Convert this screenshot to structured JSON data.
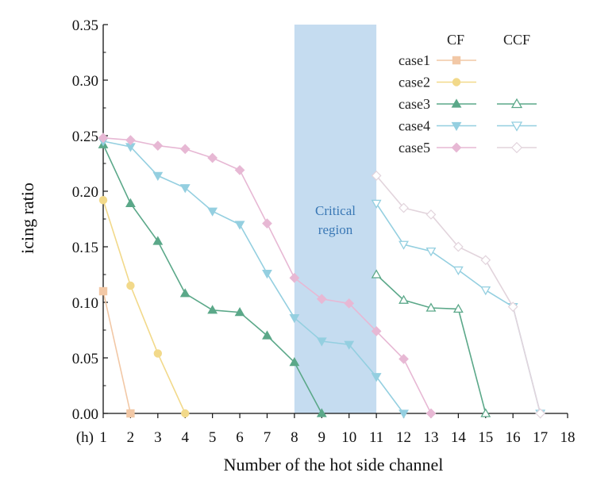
{
  "chart_data": {
    "type": "line",
    "xlabel": "Number of the hot side channel",
    "ylabel": "icing ratio",
    "x_prefix": "(h)",
    "xlim": [
      1,
      18
    ],
    "ylim": [
      0,
      0.35
    ],
    "x_ticks": [
      "1",
      "2",
      "3",
      "4",
      "5",
      "6",
      "7",
      "8",
      "9",
      "10",
      "11",
      "12",
      "13",
      "14",
      "15",
      "16",
      "17",
      "18"
    ],
    "y_ticks": [
      "0.00",
      "0.05",
      "0.10",
      "0.15",
      "0.20",
      "0.25",
      "0.30",
      "0.35"
    ],
    "grid": false,
    "critical_region": {
      "x_start": 8,
      "x_end": 11,
      "label_line1": "Critical",
      "label_line2": "region",
      "color": "#c5dcf0"
    },
    "legend": {
      "position": "top-right",
      "header_left": "CF",
      "header_right": "CCF"
    },
    "series": [
      {
        "name": "case1",
        "group": "CF",
        "color": "#f2c8a6",
        "marker": "square",
        "x": [
          1,
          2
        ],
        "y": [
          0.11,
          0.0
        ]
      },
      {
        "name": "case2",
        "group": "CF",
        "color": "#f2d98a",
        "marker": "circle",
        "x": [
          1,
          2,
          3,
          4
        ],
        "y": [
          0.192,
          0.115,
          0.054,
          0.0
        ]
      },
      {
        "name": "case3",
        "group": "CF",
        "color": "#5ba889",
        "marker": "triangle-up",
        "x": [
          1,
          2,
          3,
          4,
          5,
          6,
          7,
          8,
          9
        ],
        "y": [
          0.242,
          0.189,
          0.155,
          0.108,
          0.093,
          0.091,
          0.07,
          0.046,
          0.0
        ]
      },
      {
        "name": "case4",
        "group": "CF",
        "color": "#94cfe0",
        "marker": "triangle-down",
        "x": [
          1,
          2,
          3,
          4,
          5,
          6,
          7,
          8,
          9,
          10,
          11,
          12
        ],
        "y": [
          0.245,
          0.24,
          0.214,
          0.203,
          0.182,
          0.17,
          0.126,
          0.086,
          0.065,
          0.062,
          0.033,
          0.0
        ]
      },
      {
        "name": "case5",
        "group": "CF",
        "color": "#e7b8d4",
        "marker": "diamond",
        "x": [
          1,
          2,
          3,
          4,
          5,
          6,
          7,
          8,
          9,
          10,
          11,
          12,
          13
        ],
        "y": [
          0.248,
          0.246,
          0.241,
          0.238,
          0.23,
          0.219,
          0.171,
          0.122,
          0.103,
          0.099,
          0.074,
          0.049,
          0.0
        ]
      },
      {
        "name": "case3",
        "group": "CCF",
        "color": "#5ba889",
        "marker": "triangle-up-open",
        "x": [
          11,
          12,
          13,
          14,
          15
        ],
        "y": [
          0.125,
          0.102,
          0.095,
          0.094,
          0.0
        ]
      },
      {
        "name": "case4",
        "group": "CCF",
        "color": "#94cfe0",
        "marker": "triangle-down-open",
        "x": [
          11,
          12,
          13,
          14,
          15,
          16,
          17
        ],
        "y": [
          0.189,
          0.152,
          0.146,
          0.129,
          0.111,
          0.096,
          0.0
        ]
      },
      {
        "name": "case5",
        "group": "CCF",
        "color": "#e2d4dc",
        "marker": "diamond-open",
        "x": [
          11,
          12,
          13,
          14,
          15,
          16,
          17
        ],
        "y": [
          0.214,
          0.185,
          0.179,
          0.15,
          0.138,
          0.096,
          0.0
        ]
      }
    ],
    "legend_entries": [
      {
        "label": "case1",
        "cf_color": "#f2c8a6",
        "cf_marker": "square",
        "ccf_color": "",
        "ccf_marker": ""
      },
      {
        "label": "case2",
        "cf_color": "#f2d98a",
        "cf_marker": "circle",
        "ccf_color": "",
        "ccf_marker": ""
      },
      {
        "label": "case3",
        "cf_color": "#5ba889",
        "cf_marker": "triangle-up",
        "ccf_color": "#5ba889",
        "ccf_marker": "triangle-up-open"
      },
      {
        "label": "case4",
        "cf_color": "#94cfe0",
        "cf_marker": "triangle-down",
        "ccf_color": "#94cfe0",
        "ccf_marker": "triangle-down-open"
      },
      {
        "label": "case5",
        "cf_color": "#e7b8d4",
        "cf_marker": "diamond",
        "ccf_color": "#e2d4dc",
        "ccf_marker": "diamond-open"
      }
    ]
  }
}
